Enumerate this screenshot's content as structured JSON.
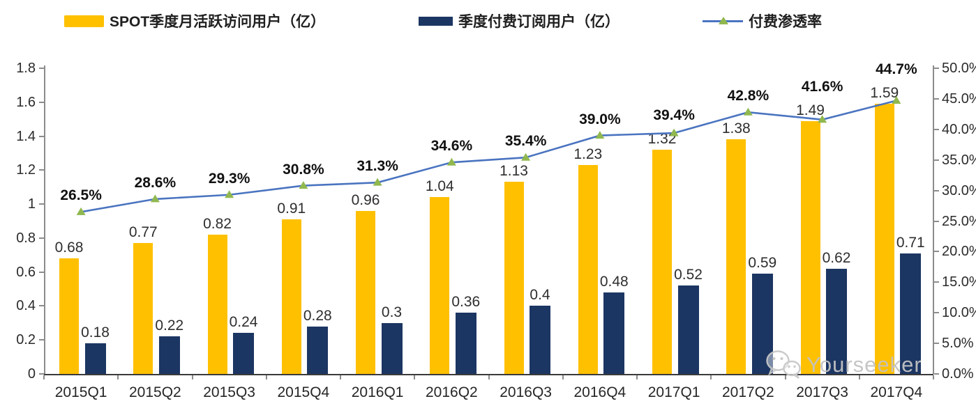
{
  "legend": [
    {
      "label": "SPOT季度月活跃访问用户（亿）",
      "swatch": "bar",
      "color": "#FFC000"
    },
    {
      "label": "季度付费订阅用户（亿）",
      "swatch": "bar",
      "color": "#1C3663"
    },
    {
      "label": "付费渗透率",
      "swatch": "line-triangle",
      "color": "#4A74C0",
      "marker_color": "#90B84F"
    }
  ],
  "watermark": {
    "text": "Yourseeker",
    "icon": "wechat-icon",
    "color": "#c3c3c3"
  },
  "chart_data": {
    "type": "combo",
    "categories": [
      "2015Q1",
      "2015Q2",
      "2015Q3",
      "2015Q4",
      "2016Q1",
      "2016Q2",
      "2016Q3",
      "2016Q4",
      "2017Q1",
      "2017Q2",
      "2017Q3",
      "2017Q4"
    ],
    "series": [
      {
        "name": "SPOT季度月活跃访问用户（亿）",
        "type": "bar",
        "axis": "left",
        "color": "#FFC000",
        "values": [
          0.68,
          0.77,
          0.82,
          0.91,
          0.96,
          1.04,
          1.13,
          1.23,
          1.32,
          1.38,
          1.49,
          1.59
        ],
        "labels": [
          "0.68",
          "0.77",
          "0.82",
          "0.91",
          "0.96",
          "1.04",
          "1.13",
          "1.23",
          "1.32",
          "1.38",
          "1.49",
          "1.59"
        ]
      },
      {
        "name": "季度付费订阅用户（亿）",
        "type": "bar",
        "axis": "left",
        "color": "#1C3663",
        "values": [
          0.18,
          0.22,
          0.24,
          0.28,
          0.3,
          0.36,
          0.4,
          0.48,
          0.52,
          0.59,
          0.62,
          0.71
        ],
        "labels": [
          "0.18",
          "0.22",
          "0.24",
          "0.28",
          "0.3",
          "0.36",
          "0.4",
          "0.48",
          "0.52",
          "0.59",
          "0.62",
          "0.71"
        ]
      },
      {
        "name": "付费渗透率",
        "type": "line",
        "axis": "right",
        "color": "#4A74C0",
        "marker": "triangle",
        "marker_color": "#90B84F",
        "values": [
          26.5,
          28.6,
          29.3,
          30.8,
          31.3,
          34.6,
          35.4,
          39.0,
          39.4,
          42.8,
          41.6,
          44.7
        ],
        "labels": [
          "26.5%",
          "28.6%",
          "29.3%",
          "30.8%",
          "31.3%",
          "34.6%",
          "35.4%",
          "39.0%",
          "39.4%",
          "42.8%",
          "41.6%",
          "44.7%"
        ]
      }
    ],
    "left_axis": {
      "min": 0,
      "max": 1.8,
      "step": 0.2,
      "tick_labels": [
        "0",
        "0.2",
        "0.4",
        "0.6",
        "0.8",
        "1",
        "1.2",
        "1.4",
        "1.6",
        "1.8"
      ]
    },
    "right_axis": {
      "min": 0,
      "max": 50,
      "step": 5,
      "tick_labels": [
        "0.0%",
        "5.0%",
        "10.0%",
        "15.0%",
        "20.0%",
        "25.0%",
        "30.0%",
        "35.0%",
        "40.0%",
        "45.0%",
        "50.0%"
      ]
    },
    "grid": false,
    "legend_position": "top",
    "title": ""
  }
}
